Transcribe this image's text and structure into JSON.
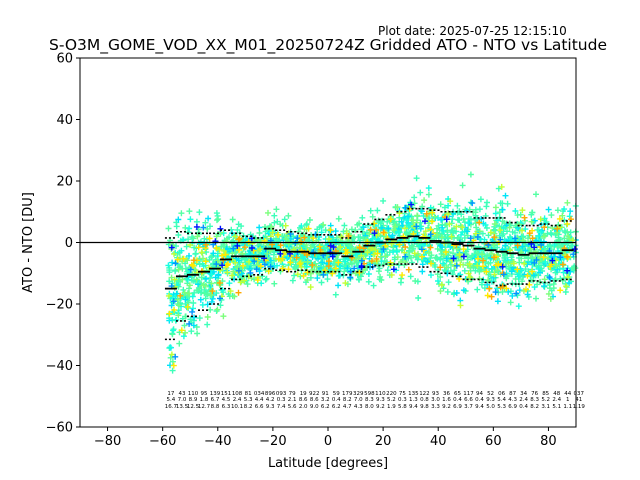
{
  "plot_date": "Plot date: 2025-07-25 12:15:10",
  "chart_data": {
    "type": "scatter",
    "title": "S-O3M_GOME_VOD_XX_M01_20250724Z Gridded ATO - NTO vs Latitude",
    "xlabel": "Latitude [degrees]",
    "ylabel": "ATO - NTO [DU]",
    "xlim": [
      -90,
      90
    ],
    "ylim": [
      -60,
      60
    ],
    "xticks": [
      "−80",
      "−60",
      "−40",
      "−20",
      "0",
      "20",
      "40",
      "60",
      "80"
    ],
    "xtick_values": [
      -80,
      -60,
      -40,
      -20,
      0,
      20,
      40,
      60,
      80
    ],
    "yticks": [
      "60",
      "40",
      "20",
      "0",
      "−20",
      "−40",
      "−60"
    ],
    "ytick_values": [
      60,
      40,
      20,
      0,
      -20,
      -40,
      -60
    ],
    "zero_line": 0,
    "grid": false,
    "legend": "none",
    "scatter_colors": [
      "#3dffb9",
      "#53ffa3",
      "#00e4f8",
      "#17ffe0",
      "#7bff7b",
      "#c1ff35",
      "#ffea00",
      "#ffa800",
      "#0094ff",
      "#0010ff"
    ],
    "mean_color": "#000000",
    "mean_by_latitude": [
      {
        "lat": -57,
        "mean": -15.0,
        "std": 16.5
      },
      {
        "lat": -53,
        "mean": -11.0,
        "std": 14.5
      },
      {
        "lat": -49,
        "mean": -10.5,
        "std": 13.5
      },
      {
        "lat": -45,
        "mean": -9.5,
        "std": 12.5
      },
      {
        "lat": -41,
        "mean": -8.5,
        "std": 11.5
      },
      {
        "lat": -37,
        "mean": -5.5,
        "std": 9.5
      },
      {
        "lat": -33,
        "mean": -4.5,
        "std": 7.5
      },
      {
        "lat": -29,
        "mean": -4.5,
        "std": 6.5
      },
      {
        "lat": -25,
        "mean": -4.5,
        "std": 6.0
      },
      {
        "lat": -21,
        "mean": -2.0,
        "std": 6.5
      },
      {
        "lat": -17,
        "mean": -2.5,
        "std": 6.5
      },
      {
        "lat": -13,
        "mean": -3.0,
        "std": 6.5
      },
      {
        "lat": -9,
        "mean": -3.0,
        "std": 6.0
      },
      {
        "lat": -5,
        "mean": -3.5,
        "std": 6.0
      },
      {
        "lat": -1,
        "mean": -3.5,
        "std": 6.0
      },
      {
        "lat": 3,
        "mean": -3.5,
        "std": 6.0
      },
      {
        "lat": 7,
        "mean": -4.5,
        "std": 6.0
      },
      {
        "lat": 11,
        "mean": -3.0,
        "std": 6.5
      },
      {
        "lat": 15,
        "mean": -1.0,
        "std": 7.0
      },
      {
        "lat": 19,
        "mean": 0.0,
        "std": 7.5
      },
      {
        "lat": 23,
        "mean": 1.0,
        "std": 8.0
      },
      {
        "lat": 27,
        "mean": 1.5,
        "std": 8.5
      },
      {
        "lat": 31,
        "mean": 2.0,
        "std": 9.0
      },
      {
        "lat": 35,
        "mean": 1.5,
        "std": 9.5
      },
      {
        "lat": 39,
        "mean": 0.5,
        "std": 10.0
      },
      {
        "lat": 43,
        "mean": 0.0,
        "std": 10.0
      },
      {
        "lat": 47,
        "mean": -0.5,
        "std": 10.5
      },
      {
        "lat": 51,
        "mean": -1.0,
        "std": 11.0
      },
      {
        "lat": 55,
        "mean": -2.0,
        "std": 10.0
      },
      {
        "lat": 59,
        "mean": -2.5,
        "std": 10.5
      },
      {
        "lat": 63,
        "mean": -3.0,
        "std": 11.0
      },
      {
        "lat": 67,
        "mean": -3.5,
        "std": 10.0
      },
      {
        "lat": 71,
        "mean": -4.0,
        "std": 9.5
      },
      {
        "lat": 75,
        "mean": -3.5,
        "std": 9.0
      },
      {
        "lat": 79,
        "mean": -3.5,
        "std": 9.5
      },
      {
        "lat": 83,
        "mean": -3.5,
        "std": 9.0
      },
      {
        "lat": 87,
        "mean": -2.5,
        "std": 9.5
      }
    ],
    "stats_rows": [
      [
        "17",
        "43",
        "110",
        "95",
        "139",
        "151",
        "108",
        "81",
        "034",
        "896",
        "093",
        "79",
        "19",
        "922",
        "91",
        "59",
        "179",
        "329",
        "598",
        "110",
        "220",
        "75",
        "135",
        "122",
        "93",
        "36",
        "65",
        "117",
        "94",
        "52",
        "06",
        "87",
        "34",
        "76",
        "85",
        "48",
        "44",
        "037"
      ],
      [
        "5.4",
        "7.0",
        "8.9",
        "1.8",
        "6.7",
        "4.5",
        "2.4",
        "5.3",
        "4.4",
        "4.2",
        "0.3",
        "2.1",
        "8.6",
        "8.6",
        "3.2",
        "0.4",
        "8.2",
        "7.0",
        "8.3",
        "9.3",
        "5.2",
        "0.3",
        "1.3",
        "0.8",
        "3.0",
        "1.6",
        "0.4",
        "6.6",
        "0.4",
        "9.3",
        "5.4",
        "4.3",
        "2.4",
        "8.3",
        "5.2",
        "2.4",
        "1",
        "41"
      ],
      [
        "16.7",
        "13.5",
        "12.5",
        "12.7",
        "8.8",
        "6.3",
        "10.1",
        "8.2",
        "6.6",
        "9.3",
        "7.4",
        "5.6",
        "2.0",
        "9.0",
        "6.2",
        "6.2",
        "4.7",
        "4.3",
        "8.0",
        "9.2",
        "1.9",
        "5.8",
        "9.4",
        "9.8",
        "3.3",
        "9.2",
        "6.9",
        "3.7",
        "9.4",
        "5.0",
        "5.3",
        "6.9",
        "0.4",
        "8.2",
        "3.1",
        "5.1",
        "1.1",
        "1.19"
      ]
    ]
  }
}
